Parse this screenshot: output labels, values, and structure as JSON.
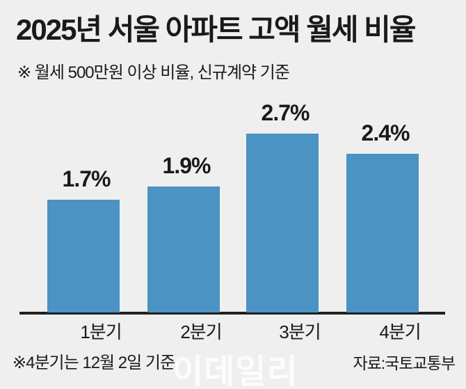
{
  "colors": {
    "background": "#efefef",
    "text": "#1a1a1a",
    "axis": "#1f1f1f",
    "bar": "#4a93c3",
    "watermark": "rgba(255,255,255,0.82)"
  },
  "header": {
    "title": "2025년 서울 아파트 고액 월세 비율",
    "subtitle": "※ 월세 500만원 이상 비율, 신규계약 기준"
  },
  "chart_data": {
    "type": "bar",
    "title": "2025년 서울 아파트 고액 월세 비율",
    "subtitle": "※ 월세 500만원 이상 비율, 신규계약 기준",
    "categories": [
      "1분기",
      "2분기",
      "3분기",
      "4분기"
    ],
    "values": [
      1.7,
      1.9,
      2.7,
      2.4
    ],
    "data_labels": [
      "1.7%",
      "1.9%",
      "2.7%",
      "2.4%"
    ],
    "unit": "%",
    "bar_color": "#4a93c3",
    "ylim": [
      0,
      3
    ],
    "grid": false,
    "legend": false,
    "y_axis_shown": false
  },
  "footer": {
    "note": "※4분기는 12월 2일 기준",
    "source": "자료:국토교통부"
  },
  "watermark": {
    "text": "이데일리"
  }
}
